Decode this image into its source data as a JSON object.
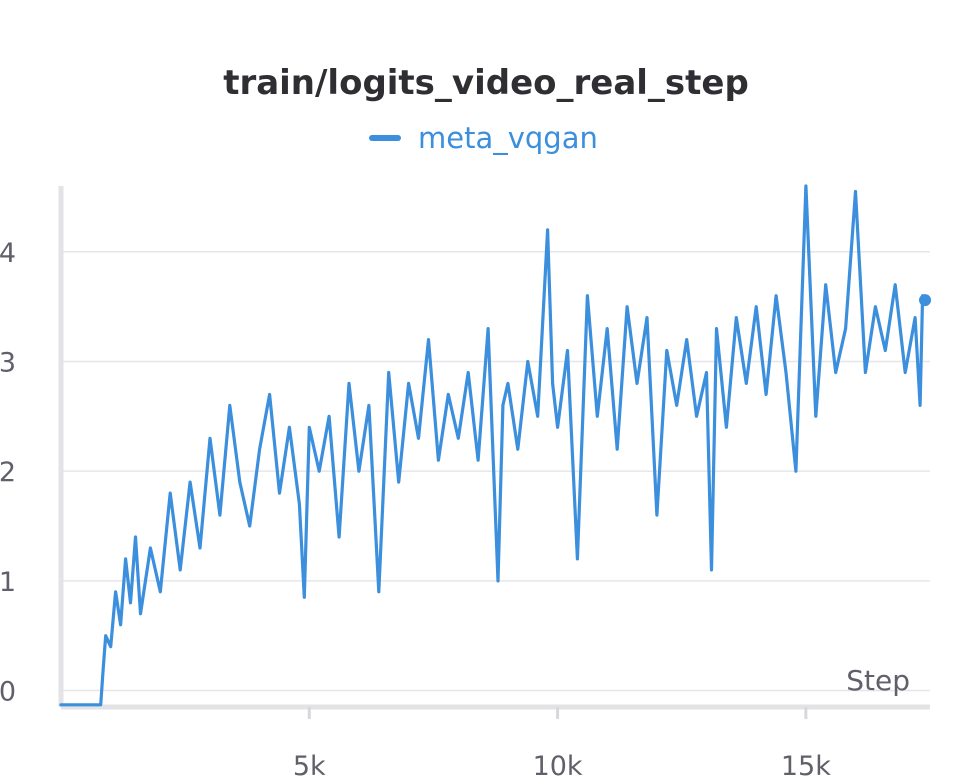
{
  "chart_data": {
    "type": "line",
    "title": "train/logits_video_real_step",
    "xlabel": "Step",
    "ylabel": "",
    "xlim": [
      0,
      17500
    ],
    "ylim": [
      -0.15,
      4.6
    ],
    "x_ticks": [
      5000,
      10000,
      15000
    ],
    "x_tick_labels": [
      "5k",
      "10k",
      "15k"
    ],
    "y_ticks": [
      0,
      1,
      2,
      3,
      4
    ],
    "y_tick_labels": [
      "0",
      "1",
      "2",
      "3",
      "4"
    ],
    "grid": true,
    "legend_position": "top-center",
    "series": [
      {
        "name": "meta_vqgan",
        "color": "#3c8fdd",
        "x": [
          0,
          400,
          800,
          850,
          900,
          1000,
          1100,
          1200,
          1300,
          1400,
          1500,
          1600,
          1800,
          2000,
          2200,
          2400,
          2600,
          2800,
          3000,
          3200,
          3400,
          3600,
          3800,
          4000,
          4200,
          4400,
          4600,
          4800,
          4900,
          5000,
          5200,
          5400,
          5600,
          5800,
          6000,
          6200,
          6400,
          6600,
          6800,
          7000,
          7200,
          7400,
          7600,
          7800,
          8000,
          8200,
          8400,
          8600,
          8800,
          8900,
          9000,
          9200,
          9400,
          9600,
          9800,
          9900,
          10000,
          10200,
          10400,
          10600,
          10800,
          11000,
          11200,
          11400,
          11600,
          11800,
          12000,
          12200,
          12400,
          12600,
          12800,
          13000,
          13100,
          13200,
          13400,
          13600,
          13800,
          14000,
          14200,
          14400,
          14600,
          14800,
          15000,
          15200,
          15400,
          15600,
          15800,
          16000,
          16200,
          16400,
          16600,
          16800,
          17000,
          17200,
          17300,
          17350,
          17400
        ],
        "y": [
          -0.13,
          -0.13,
          -0.13,
          0.2,
          0.5,
          0.4,
          0.9,
          0.6,
          1.2,
          0.8,
          1.4,
          0.7,
          1.3,
          0.9,
          1.8,
          1.1,
          1.9,
          1.3,
          2.3,
          1.6,
          2.6,
          1.9,
          1.5,
          2.2,
          2.7,
          1.8,
          2.4,
          1.7,
          0.85,
          2.4,
          2.0,
          2.5,
          1.4,
          2.8,
          2.0,
          2.6,
          0.9,
          2.9,
          1.9,
          2.8,
          2.3,
          3.2,
          2.1,
          2.7,
          2.3,
          2.9,
          2.1,
          3.3,
          1.0,
          2.6,
          2.8,
          2.2,
          3.0,
          2.5,
          4.2,
          2.8,
          2.4,
          3.1,
          1.2,
          3.6,
          2.5,
          3.3,
          2.2,
          3.5,
          2.8,
          3.4,
          1.6,
          3.1,
          2.6,
          3.2,
          2.5,
          2.9,
          1.1,
          3.3,
          2.4,
          3.4,
          2.8,
          3.5,
          2.7,
          3.6,
          2.9,
          2.0,
          4.6,
          2.5,
          3.7,
          2.9,
          3.3,
          4.55,
          2.9,
          3.5,
          3.1,
          3.7,
          2.9,
          3.4,
          2.6,
          3.6,
          3.56
        ]
      }
    ]
  }
}
